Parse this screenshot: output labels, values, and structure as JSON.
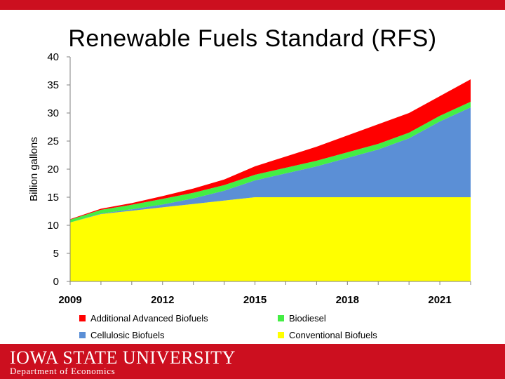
{
  "slide": {
    "title": "Renewable Fuels Standard (RFS)",
    "brand_color": "#cc0f1f"
  },
  "footer": {
    "university": "IOWA STATE UNIVERSITY",
    "department": "Department of Economics"
  },
  "chart_data": {
    "type": "area",
    "stacked": true,
    "title": "",
    "ylabel": "Billion gallons",
    "xlabel": "",
    "xlim": [
      2009,
      2022
    ],
    "ylim": [
      0,
      40
    ],
    "yticks": [
      0,
      5,
      10,
      15,
      20,
      25,
      30,
      35,
      40
    ],
    "xticks": [
      "2009",
      "2012",
      "2015",
      "2018",
      "2021"
    ],
    "x": [
      2009,
      2010,
      2011,
      2012,
      2013,
      2014,
      2015,
      2016,
      2017,
      2018,
      2019,
      2020,
      2021,
      2022
    ],
    "series": [
      {
        "name": "Conventional Biofuels",
        "color": "#ffff00",
        "values": [
          10.5,
          12.0,
          12.6,
          13.2,
          13.8,
          14.4,
          15.0,
          15.0,
          15.0,
          15.0,
          15.0,
          15.0,
          15.0,
          15.0
        ]
      },
      {
        "name": "Cellulosic Biofuels",
        "color": "#5b8fd6",
        "values": [
          0,
          0.1,
          0.25,
          0.5,
          1.0,
          1.75,
          3.0,
          4.25,
          5.5,
          7.0,
          8.5,
          10.5,
          13.5,
          16.0
        ]
      },
      {
        "name": "Biodiesel",
        "color": "#44ee44",
        "values": [
          0.5,
          0.65,
          0.8,
          1.0,
          1.0,
          1.0,
          1.0,
          1.0,
          1.0,
          1.0,
          1.0,
          1.0,
          1.0,
          1.0
        ]
      },
      {
        "name": "Additional Advanced Biofuels",
        "color": "#ff0000",
        "values": [
          0.1,
          0.2,
          0.3,
          0.5,
          0.75,
          1.0,
          1.5,
          2.0,
          2.5,
          3.0,
          3.5,
          3.5,
          3.5,
          4.0
        ]
      }
    ],
    "legend_order": [
      "Additional Advanced Biofuels",
      "Biodiesel",
      "Cellulosic Biofuels",
      "Conventional Biofuels"
    ],
    "legend_position": "bottom",
    "grid": false
  }
}
